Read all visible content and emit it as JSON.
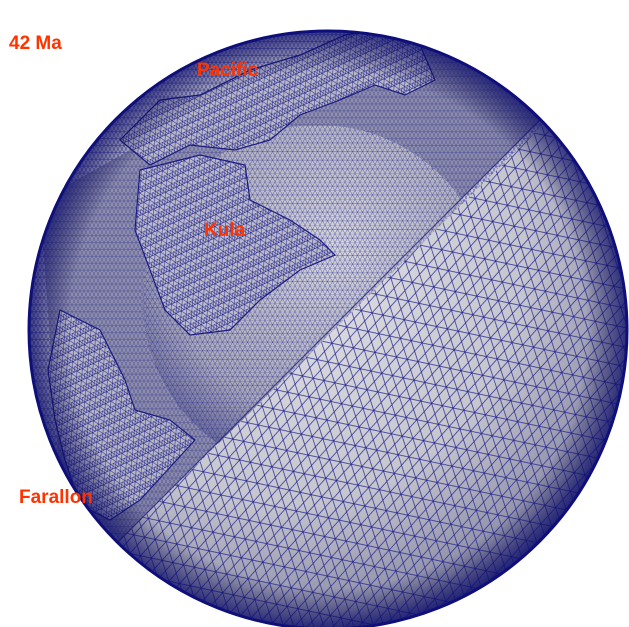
{
  "age": "42 Ma",
  "plates": {
    "pacific": "Pacific",
    "kula": "Kula",
    "farallon": "Farallon"
  },
  "colors": {
    "label": "#ff3300",
    "mesh_line": "#1a1a8c",
    "surface": "#c8c8d0",
    "background": "#ffffff"
  }
}
